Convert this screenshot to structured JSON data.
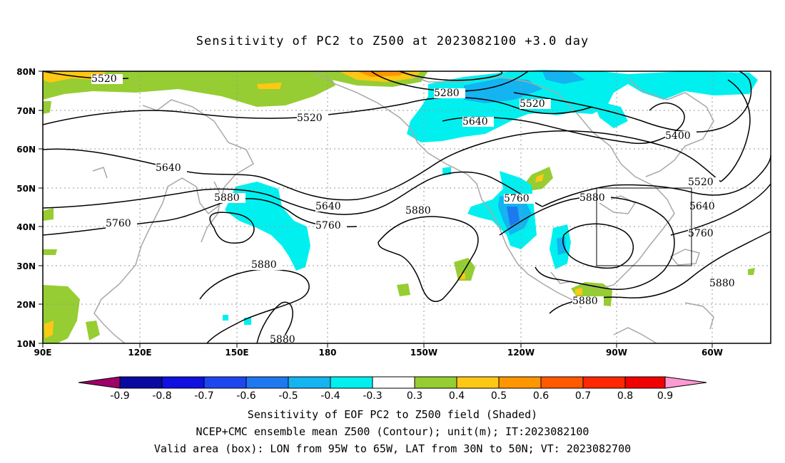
{
  "title": "Sensitivity of PC2 to Z500 at 2023082100 +3.0 day",
  "lat_labels": [
    "80N",
    "70N",
    "60N",
    "50N",
    "40N",
    "30N",
    "20N",
    "10N"
  ],
  "lon_labels": [
    "90E",
    "120E",
    "150E",
    "180",
    "150W",
    "120W",
    "90W",
    "60W"
  ],
  "colorbar": {
    "labels": [
      "-0.9",
      "-0.8",
      "-0.7",
      "-0.6",
      "-0.5",
      "-0.4",
      "-0.3",
      "0.3",
      "0.4",
      "0.5",
      "0.6",
      "0.7",
      "0.8",
      "0.9"
    ],
    "colors": [
      "#a0006a",
      "#0a0aa0",
      "#1010e0",
      "#1e46f0",
      "#1e78f0",
      "#14b4f0",
      "#00f0f0",
      "#ffffff",
      "#96cd32",
      "#ffc814",
      "#ff9600",
      "#ff5a00",
      "#ff2800",
      "#f00000",
      "#ff9ad2"
    ]
  },
  "contour_labels": [
    "5520",
    "5280",
    "5520",
    "5520",
    "5640",
    "5400",
    "5640",
    "5640",
    "5760",
    "5880",
    "5760",
    "5880",
    "5760",
    "5520",
    "5640",
    "5880",
    "5760",
    "5880",
    "5880",
    "5880",
    "5880"
  ],
  "valid_box": {
    "lon_west": "95W",
    "lon_east": "65W",
    "lat_south": "30N",
    "lat_north": "50N"
  },
  "captions": [
    "Sensitivity of EOF PC2 to Z500 field (Shaded)",
    "NCEP+CMC ensemble mean Z500 (Contour); unit(m); IT:2023082100",
    "Valid area (box): LON from 95W to 65W, LAT from 30N to 50N; VT: 2023082700"
  ]
}
